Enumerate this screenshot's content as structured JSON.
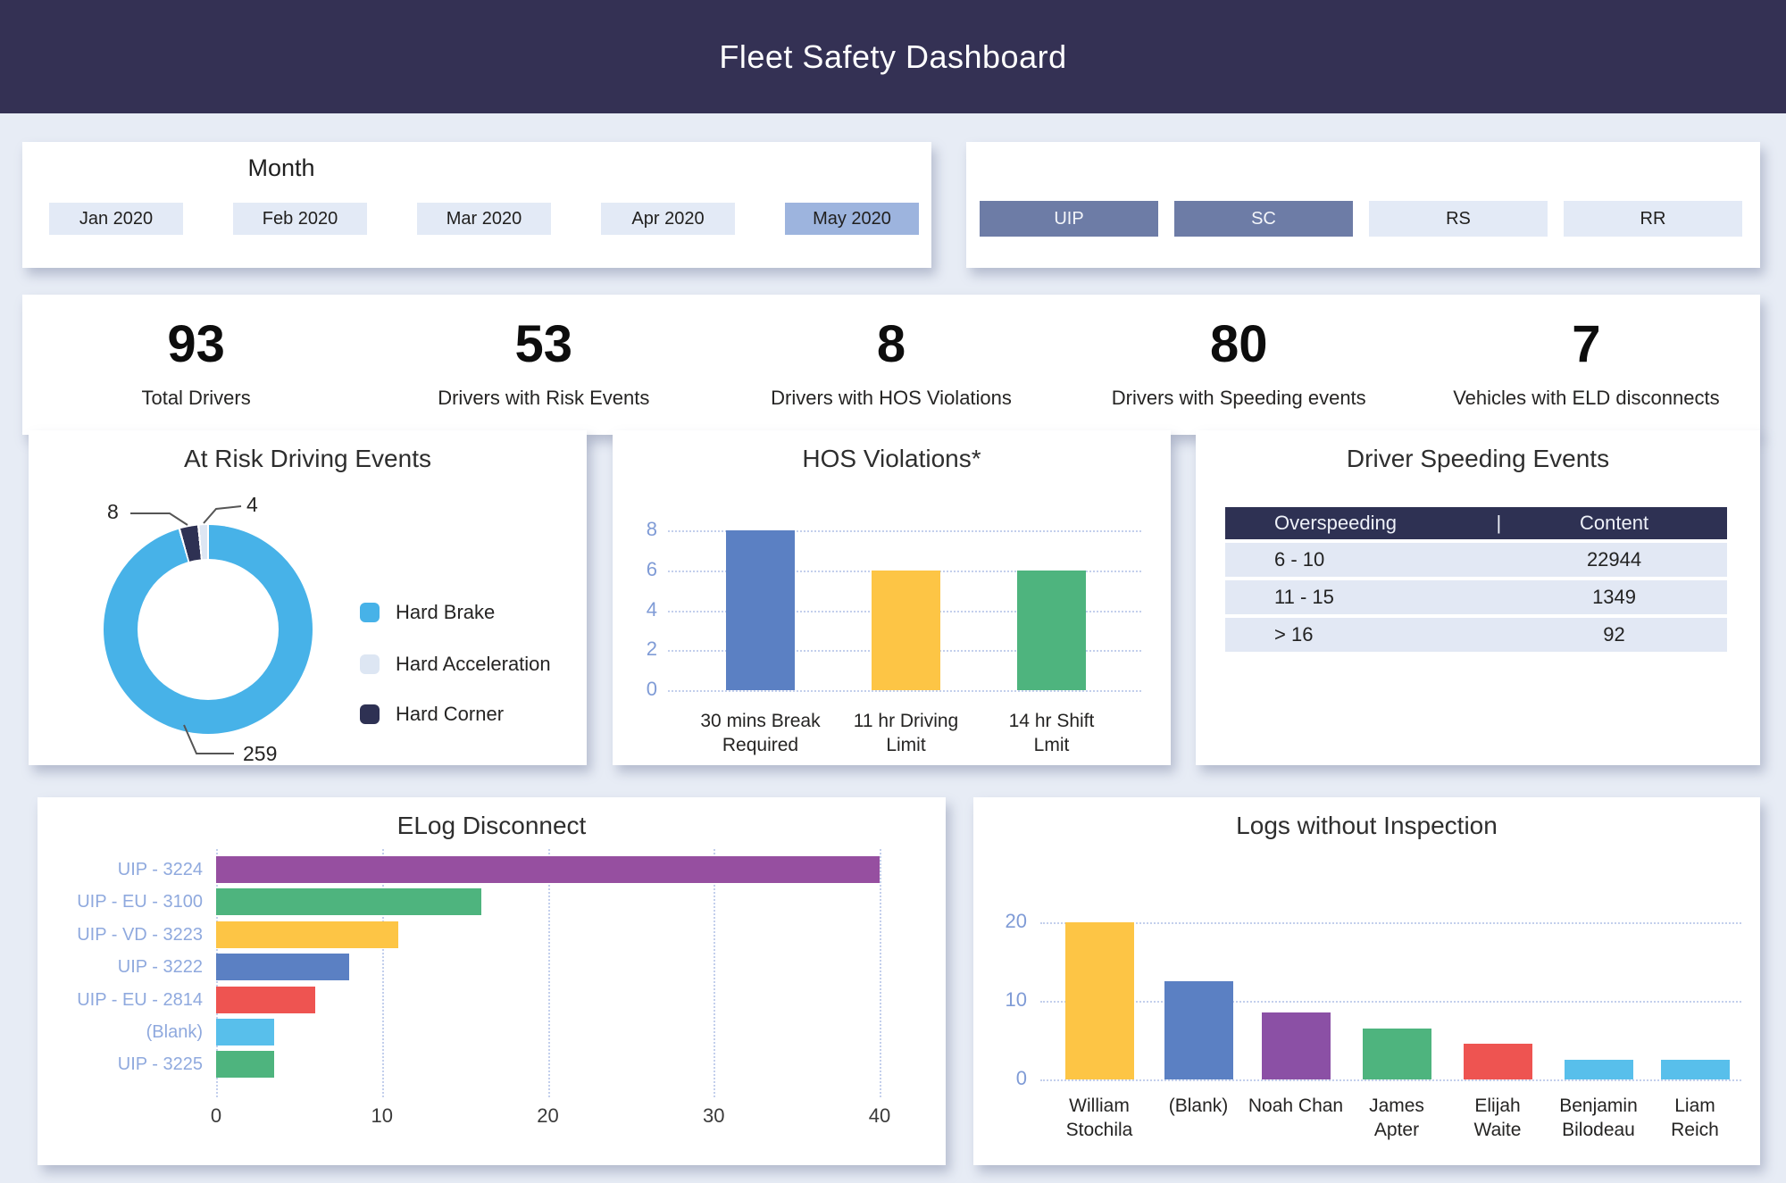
{
  "header": {
    "title": "Fleet Safety Dashboard"
  },
  "slicers": {
    "month": {
      "title": "Month",
      "options": [
        {
          "label": "Jan 2020",
          "selected": false
        },
        {
          "label": "Feb 2020",
          "selected": false
        },
        {
          "label": "Mar 2020",
          "selected": false
        },
        {
          "label": "Apr 2020",
          "selected": false
        },
        {
          "label": "May 2020",
          "selected": true
        }
      ]
    },
    "fleet": {
      "options": [
        {
          "label": "UIP",
          "selected": true
        },
        {
          "label": "SC",
          "selected": true
        },
        {
          "label": "RS",
          "selected": false
        },
        {
          "label": "RR",
          "selected": false
        }
      ]
    }
  },
  "kpis": [
    {
      "value": "93",
      "label": "Total Drivers"
    },
    {
      "value": "53",
      "label": "Drivers with Risk Events"
    },
    {
      "value": "8",
      "label": "Drivers with HOS Violations"
    },
    {
      "value": "80",
      "label": "Drivers with Speeding events"
    },
    {
      "value": "7",
      "label": "Vehicles with ELD disconnects"
    }
  ],
  "chart_data": [
    {
      "type": "pie",
      "donut": true,
      "title": "At Risk Driving Events",
      "items": [
        {
          "label": "Hard Brake",
          "value": 259,
          "color": "#47b2e8"
        },
        {
          "label": "Hard Acceleration",
          "value": 4,
          "color": "#dde6f3"
        },
        {
          "label": "Hard Corner",
          "value": 8,
          "color": "#2e3153"
        }
      ],
      "draw_order_clockwise_from_top": [
        0,
        2,
        1
      ],
      "legend_position": "right",
      "data_labels": [
        259,
        4,
        8
      ]
    },
    {
      "type": "bar",
      "title": "HOS Violations*",
      "categories": [
        "30 mins Break\nRequired",
        "11 hr Driving\nLimit",
        "14 hr Shift\nLmit"
      ],
      "values": [
        8,
        6,
        6
      ],
      "colors": [
        "#5b80c3",
        "#fdc545",
        "#4eb47e"
      ],
      "ylim": [
        0,
        8
      ],
      "yticks": [
        8,
        6,
        4,
        2,
        0
      ],
      "grid": "dotted-horizontal"
    },
    {
      "type": "table",
      "title": "Driver Speeding Events",
      "columns": [
        "Overspeeding",
        "Content"
      ],
      "header_divider": "|",
      "rows": [
        [
          "6 - 10",
          "22944"
        ],
        [
          "11 - 15",
          "1349"
        ],
        [
          "> 16",
          "92"
        ]
      ]
    },
    {
      "type": "bar-horizontal",
      "title": "ELog Disconnect",
      "categories": [
        "UIP - 3224",
        "UIP - EU - 3100",
        "UIP - VD - 3223",
        "UIP - 3222",
        "UIP - EU - 2814",
        "(Blank)",
        "UIP - 3225"
      ],
      "values": [
        40,
        16,
        11,
        8,
        6,
        3.5,
        3.5
      ],
      "colors": [
        "#964fa0",
        "#4eb47e",
        "#fdc545",
        "#5b80c3",
        "#ee5451",
        "#58bfeb",
        "#4eb47e"
      ],
      "xlim": [
        0,
        40
      ],
      "xticks": [
        0,
        10,
        20,
        30,
        40
      ],
      "grid": "dotted-vertical"
    },
    {
      "type": "bar",
      "title": "Logs without Inspection",
      "categories": [
        "William\nStochila",
        "(Blank)",
        "Noah Chan",
        "James\nApter",
        "Elijah\nWaite",
        "Benjamin\nBilodeau",
        "Liam\nReich"
      ],
      "values": [
        20,
        12.5,
        8.5,
        6.5,
        4.5,
        2.5,
        2.5
      ],
      "colors": [
        "#fdc545",
        "#5b80c3",
        "#8b50a5",
        "#4eb47e",
        "#ee5451",
        "#58bfeb",
        "#58bfeb"
      ],
      "ylim": [
        0,
        20
      ],
      "yticks": [
        20,
        10,
        0
      ],
      "grid": "dotted-horizontal"
    }
  ],
  "colors": {
    "page_bg": "#e7ecf5",
    "header_bg": "#343154",
    "card_bg": "#ffffff",
    "month_selected": "#9db4de",
    "slicer_unselected": "#e3eaf6",
    "fleet_selected": "#6d7ca6",
    "table_header_bg": "#2e3153",
    "table_row_bg": "#e2e8f4",
    "axis_tick_blue": "#7f9bd6",
    "category_label_blue": "#8fa9de"
  }
}
